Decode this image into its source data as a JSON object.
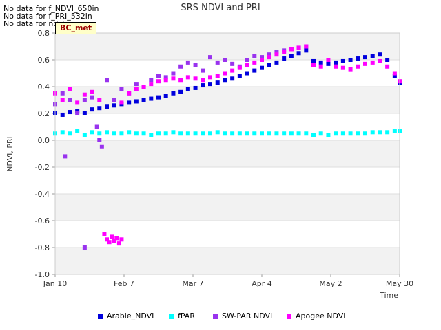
{
  "notes": [
    "No data for f_NDVI_650in",
    "No data for f_PRI_532in",
    "No data for ndvi"
  ],
  "badge_label": "BC_met",
  "chart_data": {
    "type": "scatter",
    "title": "SRS NDVI and PRI",
    "xlabel": "Time",
    "ylabel": "NDVI, PRI",
    "x_range_days": [
      0,
      140
    ],
    "ylim": [
      -1.0,
      0.8
    ],
    "y_ticks": [
      -1.0,
      -0.8,
      -0.6,
      -0.4,
      -0.2,
      0.0,
      0.2,
      0.4,
      0.6,
      0.8
    ],
    "y_tick_labels": [
      "-1.0",
      "-0.8",
      "-0.6",
      "-0.4",
      "-0.2",
      "0.0",
      "0.2",
      "0.4",
      "0.6",
      "0.8"
    ],
    "x_ticks": [
      0,
      28,
      56,
      84,
      112,
      140
    ],
    "x_tick_labels": [
      "Jan 10",
      "Feb 7",
      "Mar 7",
      "Apr 4",
      "May 2",
      "May 30"
    ],
    "grid": true,
    "legend_position": "bottom",
    "series": [
      {
        "name": "Arable_NDVI",
        "color": "#0000dd",
        "points": [
          [
            0,
            0.2
          ],
          [
            3,
            0.19
          ],
          [
            6,
            0.21
          ],
          [
            9,
            0.22
          ],
          [
            12,
            0.2
          ],
          [
            15,
            0.23
          ],
          [
            18,
            0.24
          ],
          [
            21,
            0.25
          ],
          [
            24,
            0.26
          ],
          [
            27,
            0.27
          ],
          [
            30,
            0.28
          ],
          [
            33,
            0.29
          ],
          [
            36,
            0.3
          ],
          [
            39,
            0.31
          ],
          [
            42,
            0.32
          ],
          [
            45,
            0.33
          ],
          [
            48,
            0.35
          ],
          [
            51,
            0.36
          ],
          [
            54,
            0.38
          ],
          [
            57,
            0.39
          ],
          [
            60,
            0.41
          ],
          [
            63,
            0.42
          ],
          [
            66,
            0.43
          ],
          [
            69,
            0.45
          ],
          [
            72,
            0.46
          ],
          [
            75,
            0.48
          ],
          [
            78,
            0.5
          ],
          [
            81,
            0.52
          ],
          [
            84,
            0.54
          ],
          [
            87,
            0.56
          ],
          [
            90,
            0.58
          ],
          [
            93,
            0.61
          ],
          [
            96,
            0.63
          ],
          [
            99,
            0.65
          ],
          [
            102,
            0.67
          ],
          [
            105,
            0.59
          ],
          [
            108,
            0.58
          ],
          [
            111,
            0.57
          ],
          [
            114,
            0.58
          ],
          [
            117,
            0.59
          ],
          [
            120,
            0.6
          ],
          [
            123,
            0.61
          ],
          [
            126,
            0.62
          ],
          [
            129,
            0.63
          ],
          [
            132,
            0.64
          ],
          [
            135,
            0.6
          ],
          [
            138,
            0.48
          ],
          [
            140,
            0.43
          ]
        ]
      },
      {
        "name": "fPAR",
        "color": "#00ffff",
        "points": [
          [
            0,
            0.05
          ],
          [
            3,
            0.06
          ],
          [
            6,
            0.05
          ],
          [
            9,
            0.07
          ],
          [
            12,
            0.04
          ],
          [
            15,
            0.06
          ],
          [
            18,
            0.05
          ],
          [
            21,
            0.06
          ],
          [
            24,
            0.05
          ],
          [
            27,
            0.05
          ],
          [
            30,
            0.06
          ],
          [
            33,
            0.05
          ],
          [
            36,
            0.05
          ],
          [
            39,
            0.04
          ],
          [
            42,
            0.05
          ],
          [
            45,
            0.05
          ],
          [
            48,
            0.06
          ],
          [
            51,
            0.05
          ],
          [
            54,
            0.05
          ],
          [
            57,
            0.05
          ],
          [
            60,
            0.05
          ],
          [
            63,
            0.05
          ],
          [
            66,
            0.06
          ],
          [
            69,
            0.05
          ],
          [
            72,
            0.05
          ],
          [
            75,
            0.05
          ],
          [
            78,
            0.05
          ],
          [
            81,
            0.05
          ],
          [
            84,
            0.05
          ],
          [
            87,
            0.05
          ],
          [
            90,
            0.05
          ],
          [
            93,
            0.05
          ],
          [
            96,
            0.05
          ],
          [
            99,
            0.05
          ],
          [
            102,
            0.05
          ],
          [
            105,
            0.04
          ],
          [
            108,
            0.05
          ],
          [
            111,
            0.04
          ],
          [
            114,
            0.05
          ],
          [
            117,
            0.05
          ],
          [
            120,
            0.05
          ],
          [
            123,
            0.05
          ],
          [
            126,
            0.05
          ],
          [
            129,
            0.06
          ],
          [
            132,
            0.06
          ],
          [
            135,
            0.06
          ],
          [
            138,
            0.07
          ],
          [
            140,
            0.07
          ]
        ]
      },
      {
        "name": "SW-PAR NDVI",
        "color": "#9933ee",
        "points": [
          [
            0,
            0.27
          ],
          [
            3,
            0.35
          ],
          [
            4,
            -0.12
          ],
          [
            6,
            0.3
          ],
          [
            9,
            0.2
          ],
          [
            12,
            0.3
          ],
          [
            12,
            -0.8
          ],
          [
            15,
            0.32
          ],
          [
            17,
            0.1
          ],
          [
            18,
            0.0
          ],
          [
            19,
            -0.05
          ],
          [
            21,
            0.45
          ],
          [
            24,
            0.3
          ],
          [
            27,
            0.38
          ],
          [
            30,
            0.35
          ],
          [
            33,
            0.42
          ],
          [
            36,
            0.4
          ],
          [
            39,
            0.45
          ],
          [
            42,
            0.48
          ],
          [
            45,
            0.47
          ],
          [
            48,
            0.5
          ],
          [
            51,
            0.55
          ],
          [
            54,
            0.58
          ],
          [
            57,
            0.56
          ],
          [
            60,
            0.52
          ],
          [
            63,
            0.62
          ],
          [
            66,
            0.58
          ],
          [
            69,
            0.6
          ],
          [
            72,
            0.57
          ],
          [
            75,
            0.55
          ],
          [
            78,
            0.6
          ],
          [
            81,
            0.63
          ],
          [
            84,
            0.62
          ],
          [
            87,
            0.64
          ],
          [
            90,
            0.66
          ],
          [
            93,
            0.67
          ],
          [
            96,
            0.68
          ],
          [
            99,
            0.69
          ],
          [
            102,
            0.7
          ]
        ]
      },
      {
        "name": "Apogee NDVI",
        "color": "#ff00ff",
        "points": [
          [
            0,
            0.35
          ],
          [
            3,
            0.3
          ],
          [
            6,
            0.38
          ],
          [
            9,
            0.28
          ],
          [
            12,
            0.34
          ],
          [
            15,
            0.36
          ],
          [
            18,
            0.3
          ],
          [
            20,
            -0.7
          ],
          [
            21,
            -0.74
          ],
          [
            22,
            -0.76
          ],
          [
            23,
            -0.72
          ],
          [
            24,
            -0.75
          ],
          [
            25,
            -0.73
          ],
          [
            26,
            -0.77
          ],
          [
            27,
            -0.74
          ],
          [
            27,
            0.28
          ],
          [
            30,
            0.35
          ],
          [
            33,
            0.38
          ],
          [
            36,
            0.4
          ],
          [
            39,
            0.42
          ],
          [
            42,
            0.44
          ],
          [
            45,
            0.45
          ],
          [
            48,
            0.46
          ],
          [
            51,
            0.45
          ],
          [
            54,
            0.47
          ],
          [
            57,
            0.46
          ],
          [
            60,
            0.45
          ],
          [
            63,
            0.47
          ],
          [
            66,
            0.48
          ],
          [
            69,
            0.5
          ],
          [
            72,
            0.52
          ],
          [
            75,
            0.54
          ],
          [
            78,
            0.56
          ],
          [
            81,
            0.58
          ],
          [
            84,
            0.6
          ],
          [
            87,
            0.62
          ],
          [
            90,
            0.64
          ],
          [
            93,
            0.66
          ],
          [
            96,
            0.68
          ],
          [
            99,
            0.69
          ],
          [
            102,
            0.7
          ],
          [
            105,
            0.56
          ],
          [
            108,
            0.55
          ],
          [
            111,
            0.6
          ],
          [
            114,
            0.55
          ],
          [
            117,
            0.54
          ],
          [
            120,
            0.53
          ],
          [
            123,
            0.55
          ],
          [
            126,
            0.57
          ],
          [
            129,
            0.58
          ],
          [
            132,
            0.59
          ],
          [
            135,
            0.55
          ],
          [
            138,
            0.5
          ],
          [
            140,
            0.44
          ]
        ]
      }
    ]
  }
}
